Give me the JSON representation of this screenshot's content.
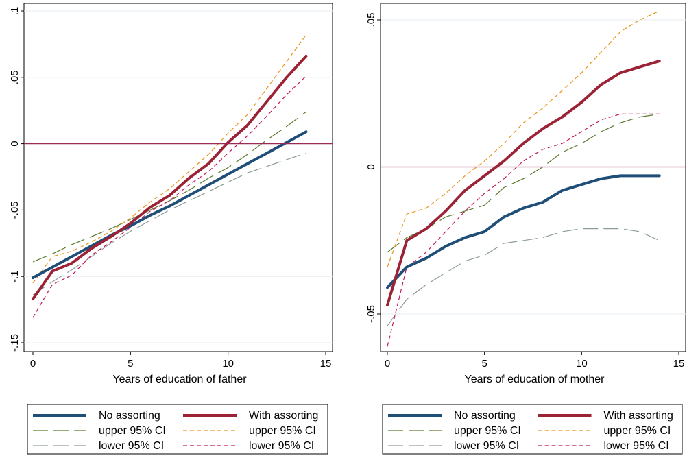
{
  "chart_data": [
    {
      "type": "line",
      "xlabel": "Years of education of father",
      "ylabel": "",
      "xlim": [
        0,
        15
      ],
      "ylim": [
        -0.15,
        0.1
      ],
      "xticks": [
        0,
        5,
        10,
        15
      ],
      "xtick_labels": [
        "0",
        "5",
        "10",
        "15"
      ],
      "yticks": [
        -0.15,
        -0.1,
        -0.05,
        0,
        0.05,
        0.1
      ],
      "ytick_labels": [
        "-.15",
        "-.1",
        "-.05",
        "0",
        ".05",
        ".1"
      ],
      "grid": "horizontal",
      "reference_line_y": 0,
      "legend": {
        "placement": "bottom",
        "columns": 2
      },
      "x": [
        0,
        1,
        2,
        3,
        4,
        5,
        6,
        7,
        8,
        9,
        10,
        11,
        12,
        13,
        14
      ],
      "series": [
        {
          "name": "No assorting",
          "style": "solid-thick",
          "color": "#1f4e79",
          "values": [
            -0.101,
            -0.093,
            -0.085,
            -0.077,
            -0.069,
            -0.062,
            -0.054,
            -0.047,
            -0.039,
            -0.031,
            -0.023,
            -0.015,
            -0.007,
            0.001,
            0.009
          ]
        },
        {
          "name": "With assorting",
          "style": "solid-thick",
          "color": "#9b2335",
          "values": [
            -0.117,
            -0.096,
            -0.09,
            -0.079,
            -0.07,
            -0.06,
            -0.048,
            -0.039,
            -0.026,
            -0.015,
            0.001,
            0.014,
            0.032,
            0.05,
            0.066
          ]
        },
        {
          "name": "upper 95% CI",
          "style": "longdash",
          "color": "#5a7a2e",
          "values": [
            -0.089,
            -0.083,
            -0.076,
            -0.07,
            -0.064,
            -0.057,
            -0.05,
            -0.043,
            -0.035,
            -0.026,
            -0.018,
            -0.008,
            0.003,
            0.013,
            0.024
          ]
        },
        {
          "name": "upper 95% CI",
          "style": "shortdash",
          "color": "#e8941a",
          "values": [
            -0.105,
            -0.085,
            -0.081,
            -0.074,
            -0.066,
            -0.056,
            -0.044,
            -0.034,
            -0.021,
            -0.008,
            0.008,
            0.022,
            0.042,
            0.062,
            0.082
          ]
        },
        {
          "name": "lower 95% CI",
          "style": "longdash",
          "color": "#8c9c96",
          "values": [
            -0.114,
            -0.104,
            -0.095,
            -0.085,
            -0.075,
            -0.066,
            -0.058,
            -0.05,
            -0.043,
            -0.036,
            -0.029,
            -0.022,
            -0.017,
            -0.012,
            -0.007
          ]
        },
        {
          "name": "lower 95% CI",
          "style": "shortdash",
          "color": "#c2185b",
          "values": [
            -0.131,
            -0.106,
            -0.099,
            -0.084,
            -0.074,
            -0.063,
            -0.051,
            -0.043,
            -0.031,
            -0.021,
            -0.007,
            0.006,
            0.021,
            0.037,
            0.051
          ]
        }
      ]
    },
    {
      "type": "line",
      "xlabel": "Years of education of mother",
      "ylabel": "",
      "xlim": [
        0,
        15
      ],
      "ylim": [
        -0.057,
        0.055
      ],
      "xticks": [
        0,
        5,
        10,
        15
      ],
      "xtick_labels": [
        "0",
        "5",
        "10",
        "15"
      ],
      "yticks": [
        -0.05,
        0,
        0.05
      ],
      "ytick_labels": [
        "-.05",
        "0",
        ".05"
      ],
      "grid": "horizontal",
      "reference_line_y": 0,
      "legend": {
        "placement": "bottom",
        "columns": 2
      },
      "x": [
        0,
        1,
        2,
        3,
        4,
        5,
        6,
        7,
        8,
        9,
        10,
        11,
        12,
        13,
        14
      ],
      "series": [
        {
          "name": "No assorting",
          "style": "solid-thick",
          "color": "#1f4e79",
          "values": [
            -0.041,
            -0.034,
            -0.031,
            -0.027,
            -0.024,
            -0.022,
            -0.017,
            -0.014,
            -0.012,
            -0.008,
            -0.006,
            -0.004,
            -0.003,
            -0.003,
            -0.003
          ]
        },
        {
          "name": "With assorting",
          "style": "solid-thick",
          "color": "#9b2335",
          "values": [
            -0.047,
            -0.025,
            -0.021,
            -0.015,
            -0.008,
            -0.003,
            0.002,
            0.008,
            0.013,
            0.017,
            0.022,
            0.028,
            0.032,
            0.034,
            0.036
          ]
        },
        {
          "name": "upper 95% CI",
          "style": "longdash",
          "color": "#5a7a2e",
          "values": [
            -0.029,
            -0.024,
            -0.021,
            -0.017,
            -0.015,
            -0.013,
            -0.007,
            -0.004,
            0.0,
            0.005,
            0.008,
            0.012,
            0.015,
            0.017,
            0.018
          ]
        },
        {
          "name": "upper 95% CI",
          "style": "shortdash",
          "color": "#e8941a",
          "values": [
            -0.034,
            -0.016,
            -0.014,
            -0.009,
            -0.003,
            0.002,
            0.008,
            0.015,
            0.02,
            0.026,
            0.032,
            0.039,
            0.046,
            0.05,
            0.053
          ]
        },
        {
          "name": "lower 95% CI",
          "style": "longdash",
          "color": "#8c9c96",
          "values": [
            -0.054,
            -0.045,
            -0.04,
            -0.036,
            -0.032,
            -0.03,
            -0.026,
            -0.025,
            -0.024,
            -0.022,
            -0.021,
            -0.021,
            -0.021,
            -0.022,
            -0.025
          ]
        },
        {
          "name": "lower 95% CI",
          "style": "shortdash",
          "color": "#c2185b",
          "values": [
            -0.061,
            -0.034,
            -0.029,
            -0.022,
            -0.015,
            -0.009,
            -0.004,
            0.002,
            0.006,
            0.008,
            0.012,
            0.016,
            0.018,
            0.018,
            0.018
          ]
        }
      ]
    }
  ]
}
